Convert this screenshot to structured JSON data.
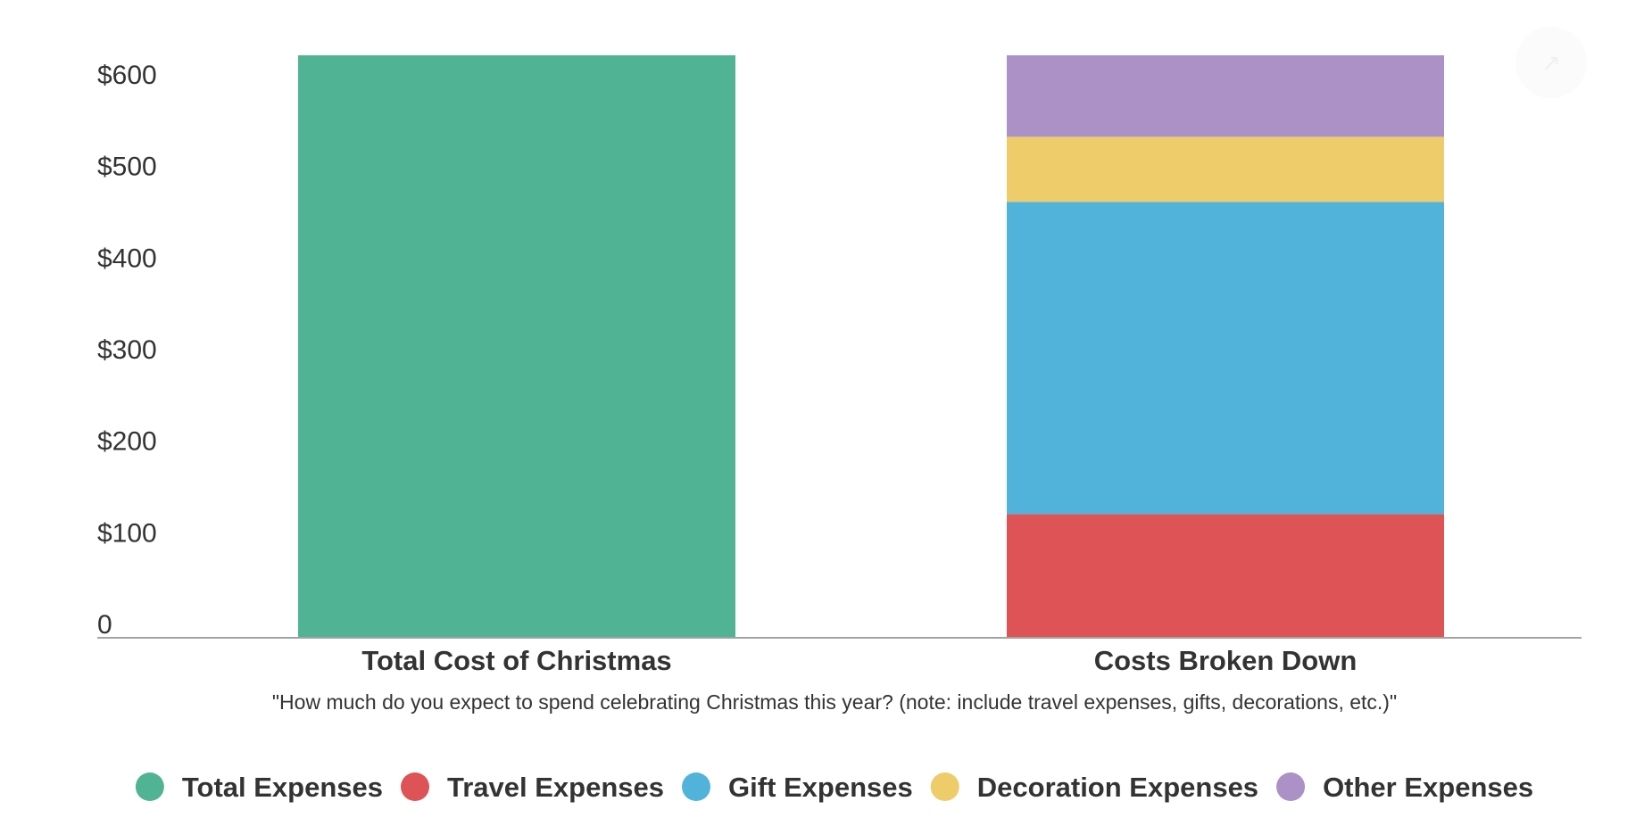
{
  "chart_data": {
    "type": "bar",
    "stacked": true,
    "categories": [
      "Total Cost of Christmas",
      "Costs Broken Down"
    ],
    "series": [
      {
        "name": "Total Expenses",
        "color": "#50b494",
        "values": [
          635,
          0
        ]
      },
      {
        "name": "Travel Expenses",
        "color": "#dd5356",
        "values": [
          0,
          134
        ]
      },
      {
        "name": "Gift Expenses",
        "color": "#51b3da",
        "values": [
          0,
          341
        ]
      },
      {
        "name": "Decoration Expenses",
        "color": "#eecc6a",
        "values": [
          0,
          71
        ]
      },
      {
        "name": "Other Expenses",
        "color": "#ab91c6",
        "values": [
          0,
          89
        ]
      }
    ],
    "y_ticks": [
      {
        "value": 0,
        "label": "0"
      },
      {
        "value": 100,
        "label": "$100"
      },
      {
        "value": 200,
        "label": "$200"
      },
      {
        "value": 300,
        "label": "$300"
      },
      {
        "value": 400,
        "label": "$400"
      },
      {
        "value": 500,
        "label": "$500"
      },
      {
        "value": 600,
        "label": "$600"
      }
    ],
    "ylim": [
      0,
      635
    ],
    "grid": false,
    "legend_position": "bottom",
    "subtitle": "\"How much do you expect to spend celebrating Christmas this year? (note: include travel expenses, gifts, decorations, etc.)\""
  },
  "icons": {
    "corner": "share-icon"
  }
}
